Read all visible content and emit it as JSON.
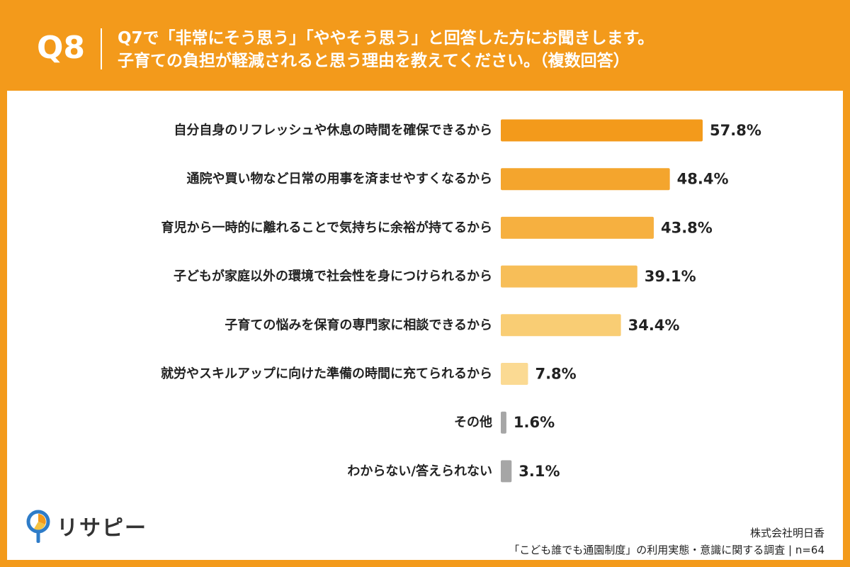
{
  "header": {
    "qnum": "Q8",
    "line1": "Q7で「非常にそう思う」「ややそう思う」と回答した方にお聞きします。",
    "line2": "子育ての負担が軽減されると思う理由を教えてください。（複数回答）"
  },
  "chart_data": {
    "type": "bar",
    "orientation": "horizontal",
    "categories": [
      "自分自身のリフレッシュや休息の時間を確保できるから",
      "通院や買い物など日常の用事を済ませやすくなるから",
      "育児から一時的に離れることで気持ちに余裕が持てるから",
      "子どもが家庭以外の環境で社会性を身につけられるから",
      "子育ての悩みを保育の専門家に相談できるから",
      "就労やスキルアップに向けた準備の時間に充てられるから",
      "その他",
      "わからない/答えられない"
    ],
    "values": [
      57.8,
      48.4,
      43.8,
      39.1,
      34.4,
      7.8,
      1.6,
      3.1
    ],
    "value_labels": [
      "57.8%",
      "48.4%",
      "43.8%",
      "39.1%",
      "34.4%",
      "7.8%",
      "1.6%",
      "3.1%"
    ],
    "bar_colors": [
      "#F39A1B",
      "#F4A52D",
      "#F6B040",
      "#F7BE58",
      "#F9CD74",
      "#FBDA93",
      "#A6A6A6",
      "#A6A6A6"
    ],
    "title": "",
    "xlabel": "",
    "ylabel": "",
    "xlim": [
      0,
      100
    ],
    "grid": false
  },
  "logo": {
    "text": "リサピー",
    "icon": "pin-pie-icon"
  },
  "footer": {
    "company": "株式会社明日香",
    "survey": "「こども誰でも通園制度」の利用実態・意識に関する調査 | n=64"
  },
  "colors": {
    "background": "#F39A1B",
    "panel": "#FFFFFF"
  }
}
